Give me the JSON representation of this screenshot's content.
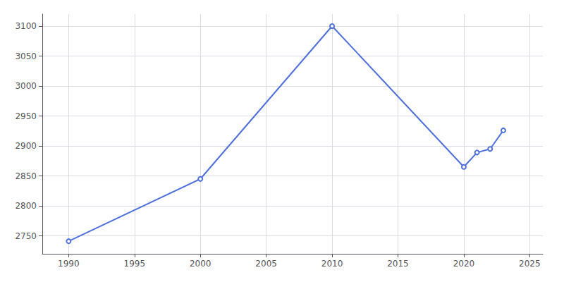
{
  "chart_data": {
    "type": "line",
    "x": [
      1990,
      2000,
      2010,
      2020,
      2021,
      2022,
      2023
    ],
    "values": [
      2741,
      2845,
      3100,
      2865,
      2889,
      2895,
      2926
    ],
    "xlim": [
      1988,
      2026
    ],
    "xticks": [
      1990,
      1995,
      2000,
      2005,
      2010,
      2015,
      2020,
      2025
    ],
    "ylim": [
      2720,
      3120
    ],
    "yticks": [
      2750,
      2800,
      2850,
      2900,
      2950,
      3000,
      3050,
      3100
    ],
    "grid": true
  }
}
